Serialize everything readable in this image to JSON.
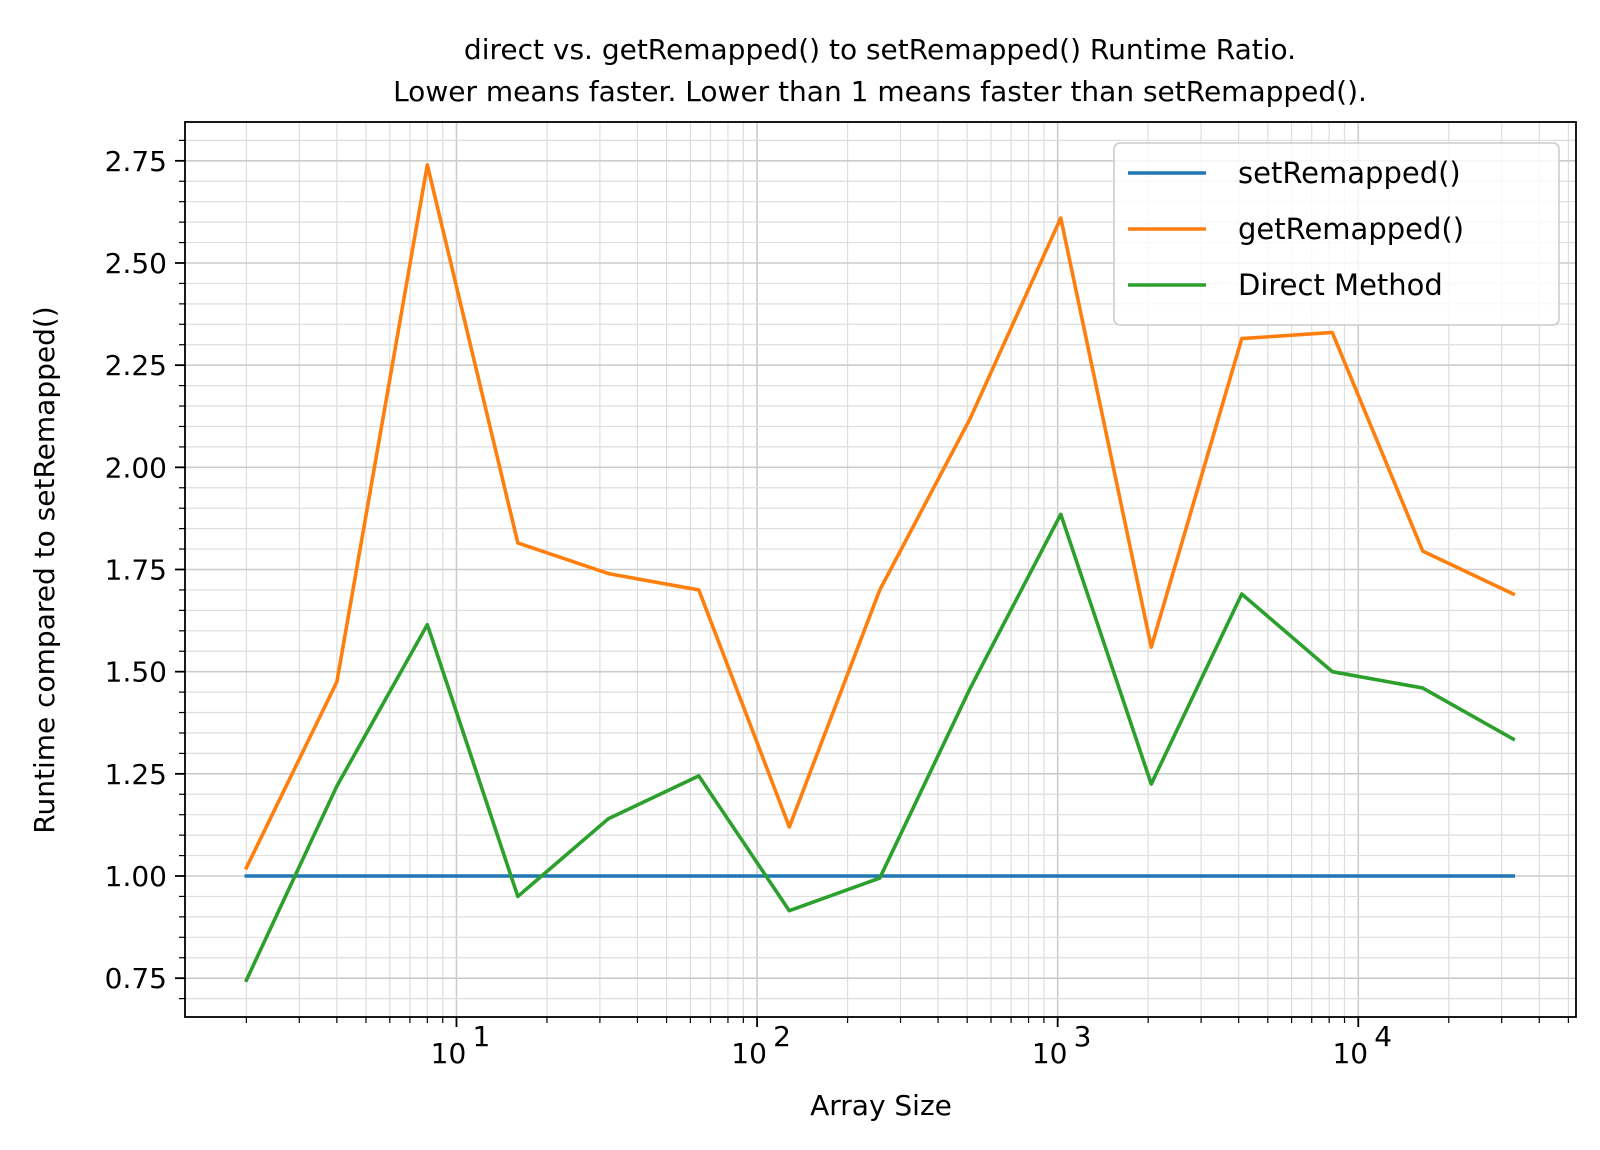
{
  "chart_data": {
    "type": "line",
    "title_line1": "direct vs. getRemapped() to setRemapped() Runtime Ratio.",
    "title_line2": "Lower means faster. Lower than 1 means faster than setRemapped().",
    "xlabel": "Array Size",
    "ylabel": "Runtime compared to setRemapped()",
    "xscale": "log",
    "xlim": [
      1.25,
      53000
    ],
    "ylim": [
      0.655,
      2.845
    ],
    "grid": true,
    "legend_position": "upper right",
    "x": [
      2,
      4,
      8,
      16,
      32,
      64,
      128,
      256,
      512,
      1024,
      2048,
      4096,
      8192,
      16384,
      32768
    ],
    "x_ticks": [
      {
        "value": 10,
        "base": "10",
        "exp": "1"
      },
      {
        "value": 100,
        "base": "10",
        "exp": "2"
      },
      {
        "value": 1000,
        "base": "10",
        "exp": "3"
      },
      {
        "value": 10000,
        "base": "10",
        "exp": "4"
      }
    ],
    "y_ticks": [
      {
        "value": 0.75,
        "label": "0.75"
      },
      {
        "value": 1.0,
        "label": "1.00"
      },
      {
        "value": 1.25,
        "label": "1.25"
      },
      {
        "value": 1.5,
        "label": "1.50"
      },
      {
        "value": 1.75,
        "label": "1.75"
      },
      {
        "value": 2.0,
        "label": "2.00"
      },
      {
        "value": 2.25,
        "label": "2.25"
      },
      {
        "value": 2.5,
        "label": "2.50"
      },
      {
        "value": 2.75,
        "label": "2.75"
      }
    ],
    "series": [
      {
        "name": "setRemapped()",
        "color": "#1f77b4",
        "values": [
          1.0,
          1.0,
          1.0,
          1.0,
          1.0,
          1.0,
          1.0,
          1.0,
          1.0,
          1.0,
          1.0,
          1.0,
          1.0,
          1.0,
          1.0
        ]
      },
      {
        "name": "getRemapped()",
        "color": "#ff7f0e",
        "values": [
          1.02,
          1.475,
          2.74,
          1.815,
          1.74,
          1.7,
          1.12,
          1.7,
          2.12,
          2.61,
          1.56,
          2.315,
          2.33,
          1.795,
          1.69
        ]
      },
      {
        "name": "Direct Method",
        "color": "#2ca02c",
        "values": [
          0.745,
          1.22,
          1.615,
          0.95,
          1.14,
          1.245,
          0.915,
          0.995,
          1.46,
          1.885,
          1.225,
          1.69,
          1.5,
          1.46,
          1.335
        ]
      }
    ]
  }
}
